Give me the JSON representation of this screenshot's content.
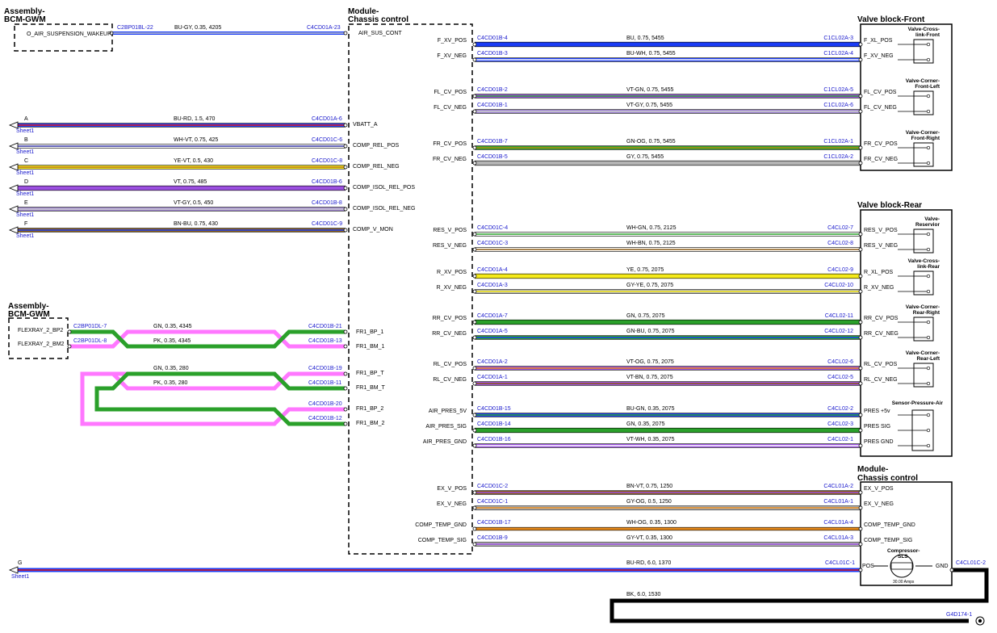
{
  "headers": {
    "bcm_top": [
      "Assembly-",
      "BCM-GWM"
    ],
    "bcm_mid": [
      "Assembly-",
      "BCM-GWM"
    ],
    "module_top": [
      "Module-",
      "Chassis control"
    ],
    "module_bottom": [
      "Module-",
      "Chassis control"
    ],
    "valve_front": "Valve block-Front",
    "valve_rear": "Valve block-Rear"
  },
  "left_wires": [
    {
      "letter": "A",
      "sheet": "Sheet1",
      "wire": "BU-RD,  1.5,  470",
      "conn": "C4CD01A-6",
      "pin": "VBATT_A",
      "colors": [
        "#1a3cf5",
        "#e01818"
      ],
      "thick": 4
    },
    {
      "letter": "B",
      "sheet": "Sheet1",
      "wire": "WH-VT,  0.75,  425",
      "conn": "C4CD01C-6",
      "pin": "COMP_REL_POS",
      "colors": [
        "#ffffff",
        "#3030a0"
      ],
      "thick": 4
    },
    {
      "letter": "C",
      "sheet": "Sheet1",
      "wire": "YE-VT,  0.5,  430",
      "conn": "C4CD01C-8",
      "pin": "COMP_REL_NEG",
      "colors": [
        "#f5ea1a",
        "#b8741a"
      ],
      "thick": 4
    },
    {
      "letter": "D",
      "sheet": "Sheet1",
      "wire": "VT,  0.75,  485",
      "conn": "C4CD01B-6",
      "pin": "COMP_ISOL_REL_POS",
      "colors": [
        "#9b4fe0",
        "#9b4fe0"
      ],
      "thick": 5
    },
    {
      "letter": "E",
      "sheet": "Sheet1",
      "wire": "VT-GY,  0.5,  450",
      "conn": "C4CD01B-8",
      "pin": "COMP_ISOL_REL_NEG",
      "colors": [
        "#9b80d0",
        "#d0d0d0"
      ],
      "thick": 4
    },
    {
      "letter": "F",
      "sheet": "Sheet1",
      "wire": "BN-BU,  0.75,  430",
      "conn": "C4CD01C-9",
      "pin": "COMP_V_MON",
      "colors": [
        "#8a5a14",
        "#1a3cf5"
      ],
      "thick": 4
    }
  ],
  "top_wire": {
    "left_pin": "O_AIR_SUSPENSION_WAKEUP",
    "left_conn": "C2BP01BL-22",
    "wire": "BU-GY,  0.35,  4205",
    "conn": "C4CD01A-23",
    "pin": "AIR_SUS_CONT"
  },
  "flexray": {
    "pins_left": [
      "FLEXRAY_2_BP2",
      "FLEXRAY_2_BM2"
    ],
    "conn_left": [
      "C2BP01DL-7",
      "C2BP01DL-8"
    ],
    "wires": [
      "GN,  0.35,  4345",
      "PK,  0.35,  4345",
      "GN,  0.35,  280",
      "PK,  0.35,  280"
    ],
    "conn_right": [
      "C4CD01B-21",
      "C4CD01B-13",
      "C4CD01B-19",
      "C4CD01B-11",
      "C4CD01B-20",
      "C4CD01B-12"
    ],
    "pins_right": [
      "FR1_BP_1",
      "FR1_BM_1",
      "FR1_BP_T",
      "FR1_BM_T",
      "FR1_BP_2",
      "FR1_BM_2"
    ]
  },
  "right_wires": [
    {
      "lpin": "F_XV_POS",
      "lconn": "C4CD01B-4",
      "wire": "BU,  0.75,  5455",
      "rconn": "C1CL02A-3",
      "rpin": "F_XL_POS",
      "colors": [
        "#1a3cf5",
        "#1a3cf5"
      ],
      "thick": 5
    },
    {
      "lpin": "F_XV_NEG",
      "lconn": "C4CD01B-3",
      "wire": "BU-WH,  0.75,  5455",
      "rconn": "C1CL02A-4",
      "rpin": "F_XV_NEG",
      "colors": [
        "#1a3cf5",
        "#ffffff"
      ],
      "thick": 4
    },
    {
      "lpin": "FL_CV_POS",
      "lconn": "C4CD01B-2",
      "wire": "VT-GN,  0.75,  5455",
      "rconn": "C1CL02A-5",
      "rpin": "FL_CV_POS",
      "colors": [
        "#9b4fe0",
        "#2aa02a"
      ],
      "thick": 4
    },
    {
      "lpin": "FL_CV_NEG",
      "lconn": "C4CD01B-1",
      "wire": "VT-GY,  0.75,  5455",
      "rconn": "C1CL02A-6",
      "rpin": "FL_CV_NEG",
      "colors": [
        "#9b80d0",
        "#d0d0d0"
      ],
      "thick": 4
    },
    {
      "lpin": "FR_CV_POS",
      "lconn": "C4CD01B-7",
      "wire": "GN-OG,  0.75,  5455",
      "rconn": "C1CL02A-1",
      "rpin": "FR_CV_POS",
      "colors": [
        "#2aa02a",
        "#b08a10"
      ],
      "thick": 4
    },
    {
      "lpin": "FR_CV_NEG",
      "lconn": "C4CD01B-5",
      "wire": "GY,  0.75,  5455",
      "rconn": "C1CL02A-2",
      "rpin": "FR_CV_NEG",
      "colors": [
        "#b4b4b4",
        "#b4b4b4"
      ],
      "thick": 5
    },
    {
      "lpin": "RES_V_POS",
      "lconn": "C4CD01C-4",
      "wire": "WH-GN,  0.75,  2125",
      "rconn": "C4CL02-7",
      "rpin": "RES_V_POS",
      "colors": [
        "#ffffff",
        "#2aa02a"
      ],
      "thick": 4
    },
    {
      "lpin": "RES_V_NEG",
      "lconn": "C4CD01C-3",
      "wire": "WH-BN,  0.75,  2125",
      "rconn": "C4CL02-8",
      "rpin": "RES_V_NEG",
      "colors": [
        "#ffffff",
        "#8a5a14"
      ],
      "thick": 4
    },
    {
      "lpin": "R_XV_POS",
      "lconn": "C4CD01A-4",
      "wire": "YE,  0.75,  2075",
      "rconn": "C4CL02-9",
      "rpin": "R_XL_POS",
      "colors": [
        "#f5ea1a",
        "#f5ea1a"
      ],
      "thick": 5
    },
    {
      "lpin": "R_XV_NEG",
      "lconn": "C4CD01A-3",
      "wire": "GY-YE,  0.75,  2075",
      "rconn": "C4CL02-10",
      "rpin": "R_XV_NEG",
      "colors": [
        "#b4b4b4",
        "#f5ea1a"
      ],
      "thick": 4
    },
    {
      "lpin": "RR_CV_POS",
      "lconn": "C4CD01A-7",
      "wire": "GN,  0.75,  2075",
      "rconn": "C4CL02-11",
      "rpin": "RR_CV_POS",
      "colors": [
        "#2aa02a",
        "#2aa02a"
      ],
      "thick": 5
    },
    {
      "lpin": "RR_CV_NEG",
      "lconn": "C4CD01A-5",
      "wire": "GN-BU,  0.75,  2075",
      "rconn": "C4CL02-12",
      "rpin": "RR_CV_NEG",
      "colors": [
        "#2aa02a",
        "#1a3cf5"
      ],
      "thick": 4
    },
    {
      "lpin": "RL_CV_POS",
      "lconn": "C4CD01A-2",
      "wire": "VT-OG,  0.75,  2075",
      "rconn": "C4CL02-6",
      "rpin": "RL_CV_POS",
      "colors": [
        "#9b4fe0",
        "#e88a1a"
      ],
      "thick": 4
    },
    {
      "lpin": "RL_CV_NEG",
      "lconn": "C4CD01A-1",
      "wire": "VT-BN,  0.75,  2075",
      "rconn": "C4CL02-5",
      "rpin": "RL_CV_NEG",
      "colors": [
        "#9b4fe0",
        "#8a5a14"
      ],
      "thick": 4
    },
    {
      "lpin": "AIR_PRES_5V",
      "lconn": "C4CD01B-15",
      "wire": "BU-GN,  0.35,  2075",
      "rconn": "C4CL02-2",
      "rpin": "PRES +5v",
      "colors": [
        "#1a3cf5",
        "#2aa02a"
      ],
      "thick": 4
    },
    {
      "lpin": "AIR_PRES_SIG",
      "lconn": "C4CD01B-14",
      "wire": "GN,  0.35,  2075",
      "rconn": "C4CL02-3",
      "rpin": "PRES SIG",
      "colors": [
        "#2aa02a",
        "#2aa02a"
      ],
      "thick": 5
    },
    {
      "lpin": "AIR_PRES_GND",
      "lconn": "C4CD01B-16",
      "wire": "VT-WH,  0.35,  2075",
      "rconn": "C4CL02-1",
      "rpin": "PRES GND",
      "colors": [
        "#9b4fe0",
        "#ffffff"
      ],
      "thick": 4
    },
    {
      "lpin": "EX_V_POS",
      "lconn": "C4CD01C-2",
      "wire": "BN-VT,  0.75,  1250",
      "rconn": "C4CL01A-2",
      "rpin": "EX_V_POS",
      "colors": [
        "#8a5a14",
        "#9b4fe0"
      ],
      "thick": 4
    },
    {
      "lpin": "EX_V_NEG",
      "lconn": "C4CD01C-1",
      "wire": "GY-OG,  0.5,  1250",
      "rconn": "C4CL01A-1",
      "rpin": "EX_V_NEG",
      "colors": [
        "#b4b4b4",
        "#e88a1a"
      ],
      "thick": 4
    },
    {
      "lpin": "COMP_TEMP_GND",
      "lconn": "C4CD01B-17",
      "wire": "WH-OG,  0.35,  1300",
      "rconn": "C4CL01A-4",
      "rpin": "COMP_TEMP_GND",
      "colors": [
        "#e88a1a",
        "#e88a1a"
      ],
      "thick": 3
    },
    {
      "lpin": "COMP_TEMP_SIG",
      "lconn": "C4CD01B-9",
      "wire": "GY-VT,  0.35,  1300",
      "rconn": "C4CL01A-3",
      "rpin": "COMP_TEMP_SIG",
      "colors": [
        "#b4b4b4",
        "#9b4fe0"
      ],
      "thick": 4
    }
  ],
  "valve_front_components": [
    {
      "name": [
        "Valve-Cross-",
        "link-Front"
      ]
    },
    {
      "name": [
        "Valve-Corner-",
        "Front-Left"
      ]
    },
    {
      "name": [
        "Valve-Corner-",
        "Front-Right"
      ]
    }
  ],
  "valve_rear_components": [
    {
      "name": [
        "Valve-",
        "Reservior"
      ]
    },
    {
      "name": [
        "Valve-Cross-",
        "link-Rear"
      ]
    },
    {
      "name": [
        "Valve-Corner-",
        "Rear-Right"
      ]
    },
    {
      "name": [
        "Valve-Corner-",
        "Rear-Left"
      ]
    }
  ],
  "sensor": {
    "name": "Sensor-Pressure-Air"
  },
  "compressor": {
    "name": [
      "Compressor-",
      "SLS"
    ],
    "amps": "30.00 Amps",
    "pos": "POS",
    "gnd": "GND",
    "wire": "BU-RD,  6.0,  1370",
    "conn_left": "C4CL01C-1",
    "conn_right": "C4CL01C-2",
    "letter": "G",
    "sheet": "Sheet1",
    "ground_wire": "BK,  6.0,  1530",
    "ground": "G4D174-1"
  }
}
